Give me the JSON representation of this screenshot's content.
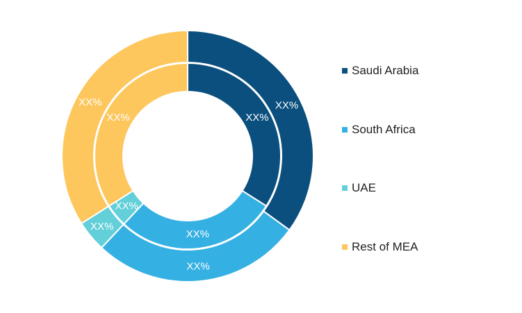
{
  "chart_data": {
    "type": "pie",
    "title": "",
    "categories": [
      "Saudi Arabia",
      "South Africa",
      "UAE",
      "Rest of MEA"
    ],
    "colors": [
      "#0b4f7e",
      "#35b0e3",
      "#62cfd9",
      "#fdc75e"
    ],
    "series": [
      {
        "ring": "outer",
        "values": [
          35,
          27,
          4,
          34
        ],
        "labels": [
          "XX%",
          "XX%",
          "XX%",
          "XX%"
        ]
      },
      {
        "ring": "inner",
        "values": [
          34,
          28,
          4,
          34
        ],
        "labels": [
          "XX%",
          "XX%",
          "XX%",
          "XX%"
        ]
      }
    ],
    "legend_position": "right"
  },
  "legend": {
    "items": [
      {
        "label": "Saudi Arabia",
        "color": "#0b4f7e"
      },
      {
        "label": "South Africa",
        "color": "#35b0e3"
      },
      {
        "label": "UAE",
        "color": "#62cfd9"
      },
      {
        "label": "Rest of MEA",
        "color": "#fdc75e"
      }
    ]
  }
}
